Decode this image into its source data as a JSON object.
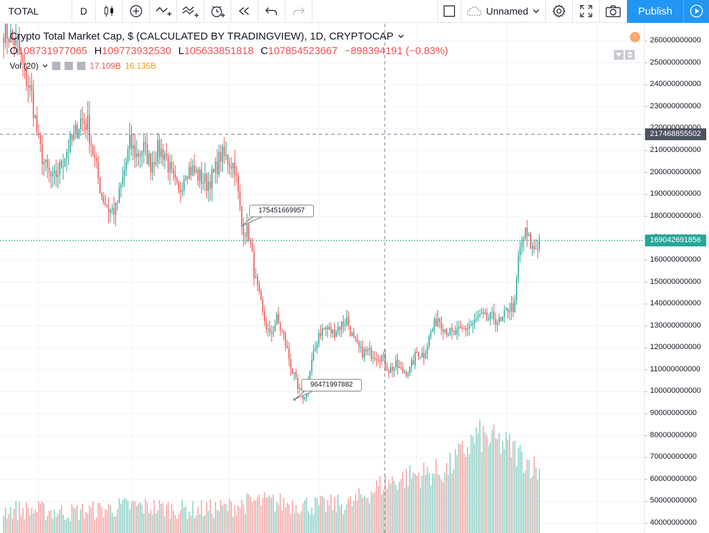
{
  "toolbar": {
    "symbol": "TOTAL",
    "interval": "D",
    "layout_name": "Unnamed",
    "publish_label": "Publish",
    "icons": [
      "candles-icon",
      "compare-plus-icon",
      "indicator-icon",
      "indicators-template-icon",
      "alert-clock-icon",
      "replay-icon",
      "undo-icon",
      "redo-icon",
      "layout-square-icon",
      "cloud-icon",
      "chevron-down-icon",
      "gear-icon",
      "fullscreen-icon",
      "camera-icon",
      "play-icon"
    ]
  },
  "legend": {
    "title": "Crypto Total Market Cap, $ (CALCULATED BY TRADINGVIEW), 1D, CRYPTOCAP",
    "open_label": "O",
    "open_value": "108731977065",
    "high_label": "H",
    "high_value": "109773932530",
    "low_label": "L",
    "low_value": "105633851818",
    "close_label": "C",
    "close_value": "107854523667",
    "change": "−898394191 (−0.83%)",
    "vol_label": "Vol (20)",
    "vol_value": "17.109B",
    "vol_ma_value": "16.135B",
    "notice_glyph": "!"
  },
  "price_axis": {
    "ticks": [
      "260000000000",
      "250000000000",
      "240000000000",
      "230000000000",
      "220000000000",
      "210000000000",
      "200000000000",
      "190000000000",
      "180000000000",
      "170000000000",
      "160000000000",
      "150000000000",
      "140000000000",
      "130000000000",
      "120000000000",
      "110000000000",
      "100000000000",
      "90000000000",
      "80000000000",
      "70000000000",
      "60000000000",
      "50000000000",
      "40000000000"
    ],
    "crosshair_price": "217468855502",
    "last_price": "169042691856"
  },
  "annotations": {
    "high_callout": "175451669957",
    "low_callout": "96471997882"
  },
  "colors": {
    "up": "#26a69a",
    "down": "#ef5350",
    "accent": "#2196f3",
    "crosshair": "#758696",
    "last_price_line": "#26a69a"
  },
  "chart_data": {
    "type": "candlestick",
    "symbol": "CRYPTOCAP:TOTAL",
    "interval": "1D",
    "ylim": [
      38000000000,
      268000000000
    ],
    "volume_ylim": [
      0,
      100000000000
    ],
    "waypoints": [
      [
        0,
        265000000000
      ],
      [
        4,
        262000000000
      ],
      [
        8,
        258000000000
      ],
      [
        12,
        245000000000
      ],
      [
        16,
        235000000000
      ],
      [
        20,
        213000000000
      ],
      [
        24,
        202000000000
      ],
      [
        28,
        196000000000
      ],
      [
        32,
        202000000000
      ],
      [
        36,
        210000000000
      ],
      [
        40,
        216000000000
      ],
      [
        44,
        224000000000
      ],
      [
        48,
        222000000000
      ],
      [
        52,
        205000000000
      ],
      [
        56,
        190000000000
      ],
      [
        60,
        183000000000
      ],
      [
        64,
        183000000000
      ],
      [
        68,
        197000000000
      ],
      [
        72,
        213000000000
      ],
      [
        76,
        208000000000
      ],
      [
        80,
        211000000000
      ],
      [
        84,
        204000000000
      ],
      [
        88,
        210000000000
      ],
      [
        92,
        209000000000
      ],
      [
        96,
        198000000000
      ],
      [
        100,
        190000000000
      ],
      [
        104,
        202000000000
      ],
      [
        108,
        201000000000
      ],
      [
        112,
        198000000000
      ],
      [
        116,
        195000000000
      ],
      [
        120,
        199000000000
      ],
      [
        124,
        208000000000
      ],
      [
        128,
        206000000000
      ],
      [
        132,
        203000000000
      ],
      [
        136,
        176000000000
      ],
      [
        140,
        172000000000
      ],
      [
        144,
        150000000000
      ],
      [
        148,
        135000000000
      ],
      [
        152,
        125000000000
      ],
      [
        156,
        133000000000
      ],
      [
        160,
        125000000000
      ],
      [
        164,
        112000000000
      ],
      [
        168,
        101000000000
      ],
      [
        172,
        97000000000
      ],
      [
        176,
        113000000000
      ],
      [
        180,
        127000000000
      ],
      [
        184,
        129000000000
      ],
      [
        188,
        127000000000
      ],
      [
        192,
        130000000000
      ],
      [
        196,
        133000000000
      ],
      [
        200,
        123000000000
      ],
      [
        204,
        118000000000
      ],
      [
        208,
        118000000000
      ],
      [
        212,
        117000000000
      ],
      [
        216,
        116000000000
      ],
      [
        220,
        110000000000
      ],
      [
        224,
        112000000000
      ],
      [
        228,
        109000000000
      ],
      [
        232,
        110000000000
      ],
      [
        236,
        118000000000
      ],
      [
        240,
        117000000000
      ],
      [
        244,
        127000000000
      ],
      [
        248,
        134000000000
      ],
      [
        252,
        129000000000
      ],
      [
        256,
        126000000000
      ],
      [
        260,
        127000000000
      ],
      [
        264,
        129000000000
      ],
      [
        268,
        131000000000
      ],
      [
        272,
        134000000000
      ],
      [
        276,
        133000000000
      ],
      [
        280,
        134000000000
      ],
      [
        284,
        131000000000
      ],
      [
        288,
        138000000000
      ],
      [
        292,
        139000000000
      ],
      [
        294,
        161000000000
      ],
      [
        296,
        168000000000
      ],
      [
        298,
        172000000000
      ],
      [
        300,
        169000000000
      ],
      [
        302,
        165000000000
      ],
      [
        304,
        166000000000
      ],
      [
        306,
        169000000000
      ]
    ],
    "volume_levels": [
      46000000000,
      46000000000,
      45000000000,
      46000000000,
      48000000000,
      47000000000,
      46000000000,
      47000000000,
      50000000000,
      49000000000,
      48000000000,
      49000000000,
      58000000000,
      62000000000,
      64000000000,
      80000000000,
      75000000000,
      63000000000
    ]
  }
}
